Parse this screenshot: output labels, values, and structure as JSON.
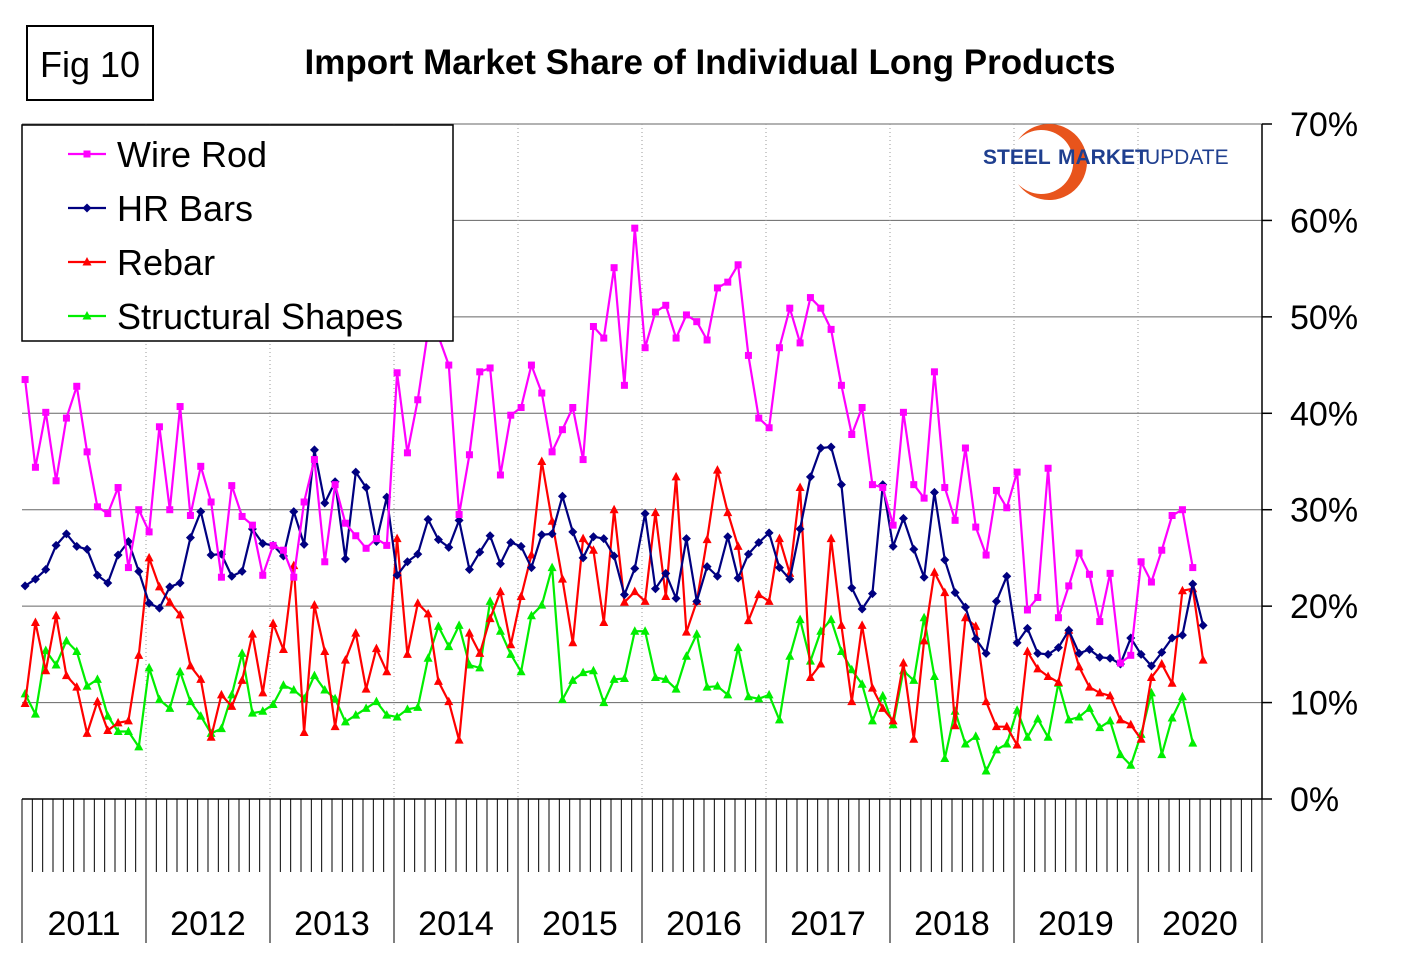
{
  "figure_label": "Fig 10",
  "logo": {
    "part1": "STEEL",
    "part2": "MARKET",
    "part3": "UPDATE",
    "colors": {
      "blue": "#1f3f8f",
      "orange": "#f08a1c",
      "red": "#c0201c"
    }
  },
  "chart_data": {
    "type": "line",
    "title": "Import Market Share of Individual Long Products",
    "xlabel": "",
    "ylabel": "",
    "x_start": "Jan 2011",
    "x_frequency": "monthly",
    "x_ticks": [
      "2011",
      "2012",
      "2013",
      "2014",
      "2015",
      "2016",
      "2017",
      "2018",
      "2019",
      "2020"
    ],
    "y_ticks": [
      "0%",
      "10%",
      "20%",
      "30%",
      "40%",
      "50%",
      "60%",
      "70%"
    ],
    "ylim": [
      0,
      70
    ],
    "grid": "horizontal",
    "legend_position": "top-left",
    "series": [
      {
        "name": "Wire Rod",
        "color": "#ff00ff",
        "marker": "square",
        "values": [
          43.5,
          34.4,
          40.1,
          33,
          39.5,
          42.8,
          36,
          30.3,
          29.6,
          32.3,
          24,
          30,
          27.7,
          38.6,
          30,
          40.7,
          29.4,
          34.5,
          30.8,
          23,
          32.5,
          29.3,
          28.4,
          23.2,
          26.3,
          25.8,
          23,
          30.8,
          35.2,
          24.6,
          32.6,
          28.6,
          27.3,
          26,
          27,
          26.3,
          44.2,
          35.9,
          41.4,
          48.6,
          48,
          45,
          29.5,
          35.7,
          44.3,
          44.7,
          33.6,
          39.8,
          40.6,
          45,
          42.1,
          36,
          38.3,
          40.6,
          35.2,
          49,
          47.8,
          55.1,
          42.9,
          59.2,
          46.8,
          50.5,
          51.2,
          47.8,
          50.2,
          49.5,
          47.6,
          53,
          53.6,
          55.4,
          46,
          39.5,
          38.5,
          46.8,
          50.9,
          47.3,
          52,
          50.9,
          48.7,
          42.9,
          37.8,
          40.6,
          32.6,
          32.3,
          28.4,
          40.1,
          32.6,
          31.2,
          44.3,
          32.3,
          28.9,
          36.4,
          28.2,
          25.3,
          32,
          30.2,
          33.9,
          19.6,
          20.9,
          34.3,
          18.8,
          22.1,
          25.5,
          23.3,
          18.4,
          23.4,
          14.1,
          14.9,
          24.6,
          22.5,
          25.8,
          29.4,
          30,
          24
        ]
      },
      {
        "name": "HR Bars",
        "color": "#000080",
        "marker": "diamond",
        "values": [
          22.1,
          22.8,
          23.8,
          26.3,
          27.5,
          26.2,
          25.9,
          23.2,
          22.4,
          25.3,
          26.7,
          23.6,
          20.3,
          19.8,
          22.0,
          22.4,
          27.1,
          29.8,
          25.3,
          25.4,
          23.1,
          23.6,
          28.0,
          26.5,
          26.3,
          25.2,
          29.8,
          26.4,
          36.2,
          30.7,
          32.9,
          24.9,
          33.9,
          32.3,
          26.7,
          31.3,
          23.2,
          24.6,
          25.4,
          29.0,
          26.9,
          26.1,
          28.9,
          23.8,
          25.6,
          27.3,
          24.4,
          26.6,
          26.2,
          24.0,
          27.4,
          27.5,
          31.4,
          27.7,
          25.0,
          27.2,
          27.0,
          25.2,
          21.2,
          23.9,
          29.6,
          21.8,
          23.4,
          20.8,
          27.0,
          20.5,
          24.1,
          23.1,
          27.2,
          22.9,
          25.4,
          26.6,
          27.6,
          24.0,
          22.8,
          28.0,
          33.4,
          36.4,
          36.5,
          32.6,
          21.9,
          19.7,
          21.3,
          32.6,
          26.2,
          29.1,
          25.9,
          23.0,
          31.8,
          24.8,
          21.4,
          19.9,
          16.6,
          15.1,
          20.5,
          23.1,
          16.2,
          17.7,
          15.1,
          15.0,
          15.7,
          17.5,
          15.1,
          15.5,
          14.7,
          14.6,
          14.0,
          16.7,
          15.0,
          13.8,
          15.2,
          16.7,
          17.0,
          22.3,
          18.0
        ]
      },
      {
        "name": "Rebar",
        "color": "#ff0000",
        "marker": "triangle",
        "values": [
          9.9,
          18.3,
          13.3,
          19.0,
          12.8,
          11.6,
          6.8,
          10.1,
          7.1,
          7.9,
          8.1,
          14.9,
          25.0,
          22.0,
          20.4,
          19.1,
          13.8,
          12.4,
          6.4,
          10.8,
          9.6,
          12.3,
          17.1,
          11.0,
          18.2,
          15.5,
          24.2,
          6.9,
          20.1,
          15.3,
          7.5,
          14.4,
          17.2,
          11.4,
          15.6,
          13.2,
          27.0,
          15.0,
          20.3,
          19.2,
          12.2,
          10.1,
          6.1,
          17.2,
          15.1,
          18.7,
          21.5,
          16.0,
          21.0,
          25.3,
          35.0,
          28.8,
          22.8,
          16.2,
          27.0,
          25.8,
          18.3,
          30.0,
          20.4,
          21.5,
          20.5,
          29.7,
          21.0,
          33.4,
          17.3,
          20.5,
          26.9,
          34.1,
          29.7,
          26.2,
          18.5,
          21.2,
          20.5,
          27.0,
          23.4,
          32.3,
          12.6,
          14.0,
          27.0,
          18.0,
          10.1,
          18.0,
          11.5,
          9.4,
          8.1,
          14.1,
          6.2,
          16.4,
          23.5,
          21.4,
          7.6,
          18.8,
          17.9,
          10.1,
          7.5,
          7.5,
          5.6,
          15.3,
          13.5,
          12.7,
          12.1,
          17.5,
          13.7,
          11.6,
          11.0,
          10.7,
          8.2,
          7.7,
          6.2,
          12.6,
          14.0,
          12.0,
          21.6,
          21.8,
          14.4
        ]
      },
      {
        "name": "Structural Shapes",
        "color": "#00ee00",
        "marker": "triangle",
        "values": [
          10.9,
          8.8,
          15.4,
          13.9,
          16.4,
          15.3,
          11.7,
          12.4,
          8.6,
          7.0,
          7.0,
          5.4,
          13.6,
          10.3,
          9.4,
          13.2,
          10.1,
          8.6,
          6.8,
          7.3,
          10.8,
          15.1,
          8.9,
          9.1,
          9.8,
          11.8,
          11.3,
          10.4,
          12.8,
          11.3,
          10.4,
          8.0,
          8.7,
          9.4,
          10.1,
          8.7,
          8.5,
          9.3,
          9.5,
          14.6,
          17.9,
          15.8,
          18.0,
          13.9,
          13.6,
          20.5,
          17.4,
          15.0,
          13.2,
          19.0,
          20.1,
          24.0,
          10.3,
          12.3,
          13.1,
          13.3,
          10.0,
          12.4,
          12.5,
          17.4,
          17.4,
          12.6,
          12.4,
          11.4,
          14.8,
          17.1,
          11.6,
          11.7,
          10.8,
          15.7,
          10.6,
          10.4,
          10.8,
          8.2,
          14.8,
          18.6,
          14.3,
          17.4,
          18.6,
          15.3,
          13.4,
          11.9,
          8.1,
          10.7,
          7.7,
          13.3,
          12.3,
          18.8,
          12.7,
          4.2,
          9.1,
          5.7,
          6.5,
          2.9,
          5.1,
          5.7,
          9.2,
          6.4,
          8.3,
          6.4,
          12.0,
          8.2,
          8.5,
          9.4,
          7.4,
          8.1,
          4.6,
          3.5,
          6.7,
          11.0,
          4.6,
          8.4,
          10.6,
          5.8
        ]
      }
    ]
  }
}
